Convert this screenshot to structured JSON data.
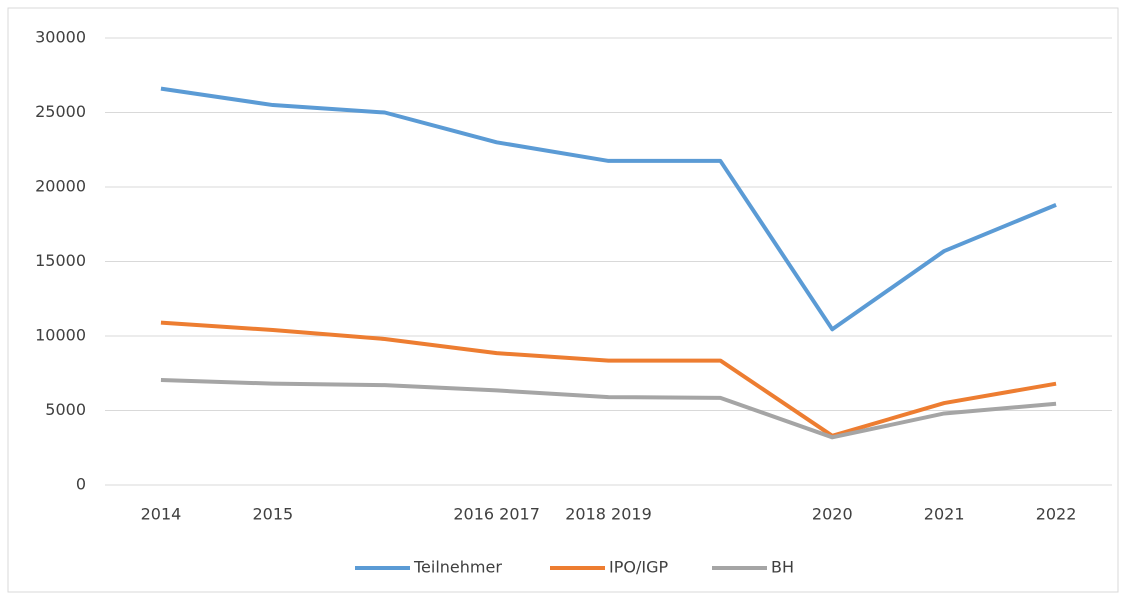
{
  "chart_data": {
    "type": "line",
    "categories": [
      "2014",
      "2015",
      null,
      "2016 2017",
      "2018 2019",
      null,
      "2020",
      "2021",
      "2022"
    ],
    "series": [
      {
        "name": "Teilnehmer",
        "color": "#5b9bd5",
        "values": [
          26600,
          25500,
          25000,
          23000,
          21750,
          21750,
          10450,
          15700,
          18800
        ]
      },
      {
        "name": "IPO/IGP",
        "color": "#ed7d31",
        "values": [
          10900,
          10400,
          9800,
          8850,
          8350,
          8350,
          3300,
          5500,
          6800
        ]
      },
      {
        "name": "BH",
        "color": "#a5a5a5",
        "values": [
          7050,
          6800,
          6700,
          6350,
          5900,
          5850,
          3200,
          4800,
          5450
        ]
      }
    ],
    "ylim": [
      0,
      30000
    ],
    "yticks": [
      0,
      5000,
      10000,
      15000,
      20000,
      25000,
      30000
    ],
    "grid": true,
    "legend": "bottom"
  }
}
